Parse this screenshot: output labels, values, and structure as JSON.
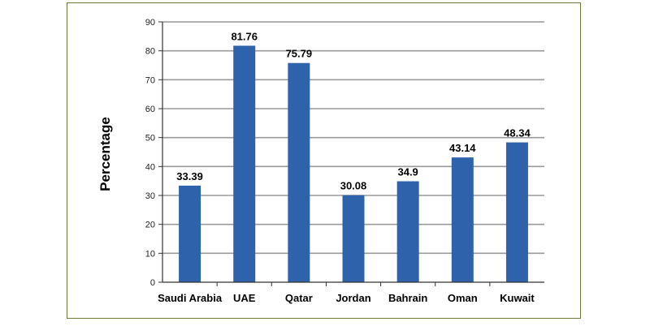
{
  "chart_data": {
    "type": "bar",
    "categories": [
      "Saudi Arabia",
      "UAE",
      "Qatar",
      "Jordan",
      "Bahrain",
      "Oman",
      "Kuwait"
    ],
    "values": [
      33.39,
      81.76,
      75.79,
      30.08,
      34.9,
      43.14,
      48.34
    ],
    "data_labels": [
      "33.39",
      "81.76",
      "75.79",
      "30.08",
      "34.9",
      "43.14",
      "48.34"
    ],
    "title": "",
    "xlabel": "",
    "ylabel": "Percentage",
    "ylim": [
      0,
      90
    ],
    "yticks": [
      0,
      10,
      20,
      30,
      40,
      50,
      60,
      70,
      80,
      90
    ],
    "grid": true,
    "legend": "none",
    "colors": {
      "bar": "#2e63ac",
      "grid": "#9a9a9a",
      "frame": "#6b7a3c"
    }
  }
}
